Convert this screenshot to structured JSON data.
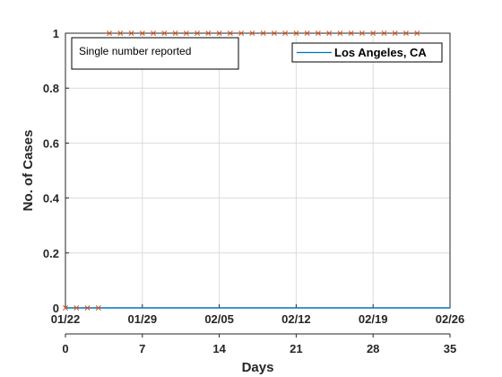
{
  "chart_data": {
    "type": "line",
    "title": "",
    "xlabel": "Days",
    "ylabel": "No. of Cases",
    "xlim": [
      0,
      35
    ],
    "ylim": [
      0,
      1
    ],
    "x_ticks": [
      0,
      7,
      14,
      21,
      28,
      35
    ],
    "x_tick_labels": [
      "0",
      "7",
      "14",
      "21",
      "28",
      "35"
    ],
    "date_ticks": [
      "01/22",
      "01/29",
      "02/05",
      "02/12",
      "02/19",
      "02/26"
    ],
    "y_ticks": [
      0,
      0.2,
      0.4,
      0.6,
      0.8,
      1
    ],
    "y_tick_labels": [
      "0",
      "0.2",
      "0.4",
      "0.6",
      "0.8",
      "1"
    ],
    "grid": true,
    "legend_position": "top-right",
    "annotation": "Single number reported",
    "series": [
      {
        "name": "Los Angeles, CA",
        "style": "line",
        "color": "#0072BD",
        "x": [
          0,
          35
        ],
        "y": [
          0,
          0
        ]
      },
      {
        "style": "x-markers",
        "color": "#D95319",
        "x": [
          0,
          1,
          2,
          3,
          4,
          5,
          6,
          7,
          8,
          9,
          10,
          11,
          12,
          13,
          14,
          15,
          16,
          17,
          18,
          19,
          20,
          21,
          22,
          23,
          24,
          25,
          26,
          27,
          28,
          29,
          30,
          31,
          32
        ],
        "y": [
          0,
          0,
          0,
          0,
          1,
          1,
          1,
          1,
          1,
          1,
          1,
          1,
          1,
          1,
          1,
          1,
          1,
          1,
          1,
          1,
          1,
          1,
          1,
          1,
          1,
          1,
          1,
          1,
          1,
          1,
          1,
          1,
          1
        ]
      }
    ]
  }
}
